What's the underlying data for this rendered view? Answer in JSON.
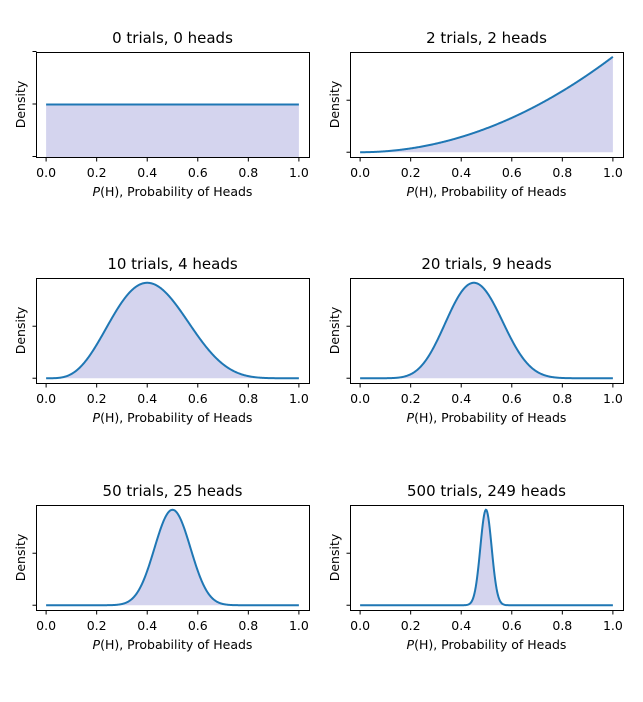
{
  "figure": {
    "colors": {
      "line": "#1f77b4",
      "fill": "#d4d4ee",
      "frame": "#000000"
    },
    "xlabel_prefix": "P",
    "xlabel_var": "(H)",
    "xlabel_suffix": ", Probability of Heads",
    "ylabel": "Density",
    "x_tick_labels": [
      "0.0",
      "0.2",
      "0.4",
      "0.6",
      "0.8",
      "1.0"
    ]
  },
  "chart_data": [
    {
      "type": "area",
      "title": "0 trials, 0 heads",
      "trials": 0,
      "heads": 0,
      "xlim": [
        0,
        1
      ],
      "xlabel": "P(H), Probability of Heads",
      "ylabel": "Density",
      "y_ticks": 3
    },
    {
      "type": "area",
      "title": "2 trials, 2 heads",
      "trials": 2,
      "heads": 2,
      "xlim": [
        0,
        1
      ],
      "xlabel": "P(H), Probability of Heads",
      "ylabel": "Density",
      "y_ticks": 2
    },
    {
      "type": "area",
      "title": "10 trials, 4 heads",
      "trials": 10,
      "heads": 4,
      "xlim": [
        0,
        1
      ],
      "xlabel": "P(H), Probability of Heads",
      "ylabel": "Density",
      "y_ticks": 2
    },
    {
      "type": "area",
      "title": "20 trials, 9 heads",
      "trials": 20,
      "heads": 9,
      "xlim": [
        0,
        1
      ],
      "xlabel": "P(H), Probability of Heads",
      "ylabel": "Density",
      "y_ticks": 2
    },
    {
      "type": "area",
      "title": "50 trials, 25 heads",
      "trials": 50,
      "heads": 25,
      "xlim": [
        0,
        1
      ],
      "xlabel": "P(H), Probability of Heads",
      "ylabel": "Density",
      "y_ticks": 3
    },
    {
      "type": "area",
      "title": "500 trials, 249 heads",
      "trials": 500,
      "heads": 249,
      "xlim": [
        0,
        1
      ],
      "xlabel": "P(H), Probability of Heads",
      "ylabel": "Density",
      "y_ticks": 2
    }
  ]
}
